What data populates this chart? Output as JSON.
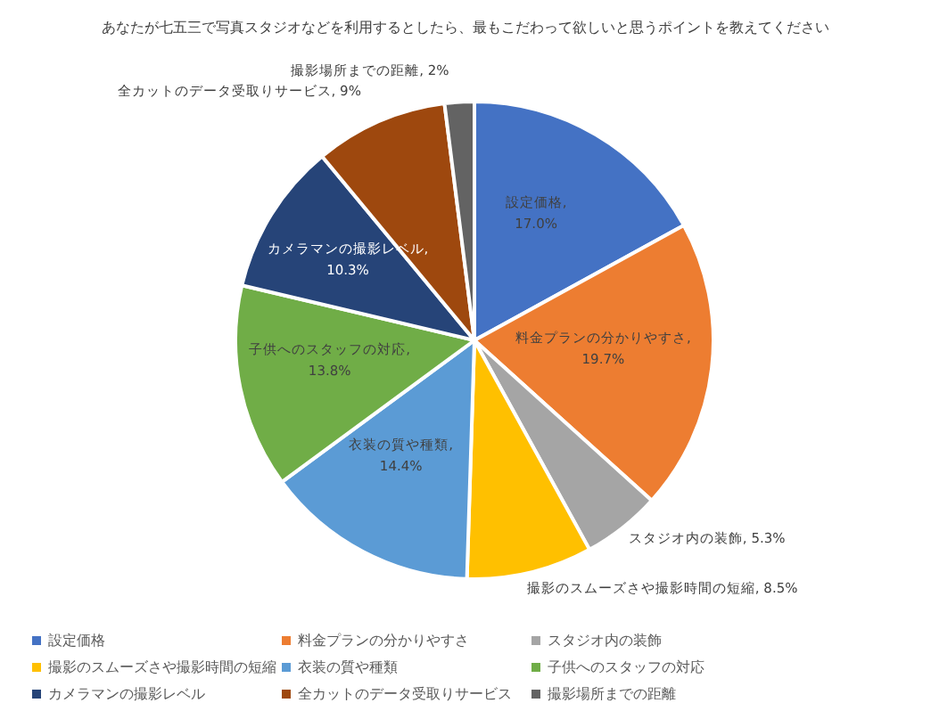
{
  "chart_data": {
    "type": "pie",
    "title": "あなたが七五三で写真スタジオなどを利用するとしたら、最もこだわって欲しいと思うポイントを教えてください",
    "categories": [
      "設定価格",
      "料金プランの分かりやすさ",
      "スタジオ内の装飾",
      "撮影のスムーズさや撮影時間の短縮",
      "衣装の質や種類",
      "子供へのスタッフの対応",
      "カメラマンの撮影レベル",
      "全カットのデータ受取りサービス",
      "撮影場所までの距離"
    ],
    "values": [
      17.0,
      19.7,
      5.3,
      8.5,
      14.4,
      13.8,
      10.3,
      9,
      2
    ],
    "value_labels": [
      "設定価格, 17.0%",
      "料金プランの分かりやすさ, 19.7%",
      "スタジオ内の装飾, 5.3%",
      "撮影のスムーズさや撮影時間の短縮, 8.5%",
      "衣装の質や種類, 14.4%",
      "子供へのスタッフの対応, 13.8%",
      "カメラマンの撮影レベル, 10.3%",
      "全カットのデータ受取りサービス, 9%",
      "撮影場所までの距離, 2%"
    ],
    "colors": [
      "#4472c4",
      "#ed7d31",
      "#a5a5a5",
      "#ffc000",
      "#5b9bd5",
      "#70ad47",
      "#264478",
      "#9e480e",
      "#636363"
    ],
    "legend": "bottom"
  }
}
